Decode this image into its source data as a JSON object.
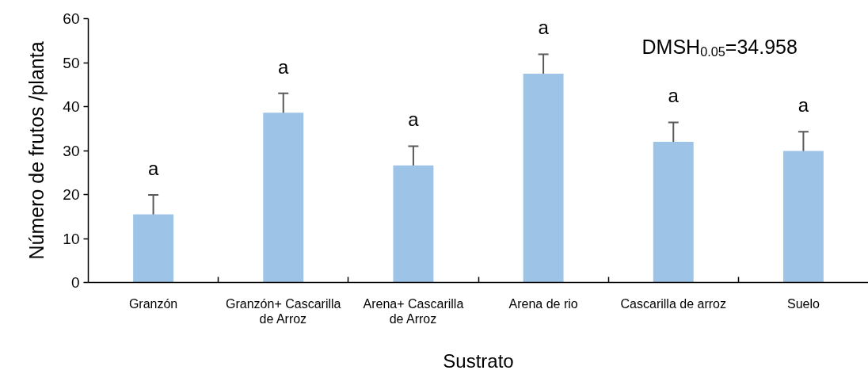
{
  "chart_data": {
    "type": "bar",
    "xlabel": "Sustrato",
    "ylabel": "Número de frutos /planta",
    "categories": [
      "Granzón",
      "Granzón+ Cascarilla de Arroz",
      "Arena+ Cascarilla de Arroz",
      "Arena de rio",
      "Cascarilla de arroz",
      "Suelo"
    ],
    "values": [
      15.5,
      38.6,
      26.6,
      47.5,
      32.0,
      29.9
    ],
    "errors": [
      4.4,
      4.4,
      4.4,
      4.4,
      4.4,
      4.4
    ],
    "color": "#9dc3e6",
    "ylim": [
      0,
      60
    ],
    "yticks": [
      0,
      10,
      20,
      30,
      40,
      50,
      60
    ],
    "grid": false,
    "annotations": [
      {
        "text": "a",
        "x": "Granzón",
        "y": 15.5
      },
      {
        "text": "a",
        "x": "Granzón+ Cascarilla de Arroz",
        "y": 38.6
      },
      {
        "text": "a",
        "x": "Arena+ Cascarilla de Arroz",
        "y": 26.6
      },
      {
        "text": "a",
        "x": "Arena de rio",
        "y": 47.5
      },
      {
        "text": "a",
        "x": "Cascarilla de arroz",
        "y": 32.0
      },
      {
        "text": "a",
        "x": "Suelo",
        "y": 29.9
      },
      "DMSH$_{0.05}$=34.958"
    ]
  }
}
